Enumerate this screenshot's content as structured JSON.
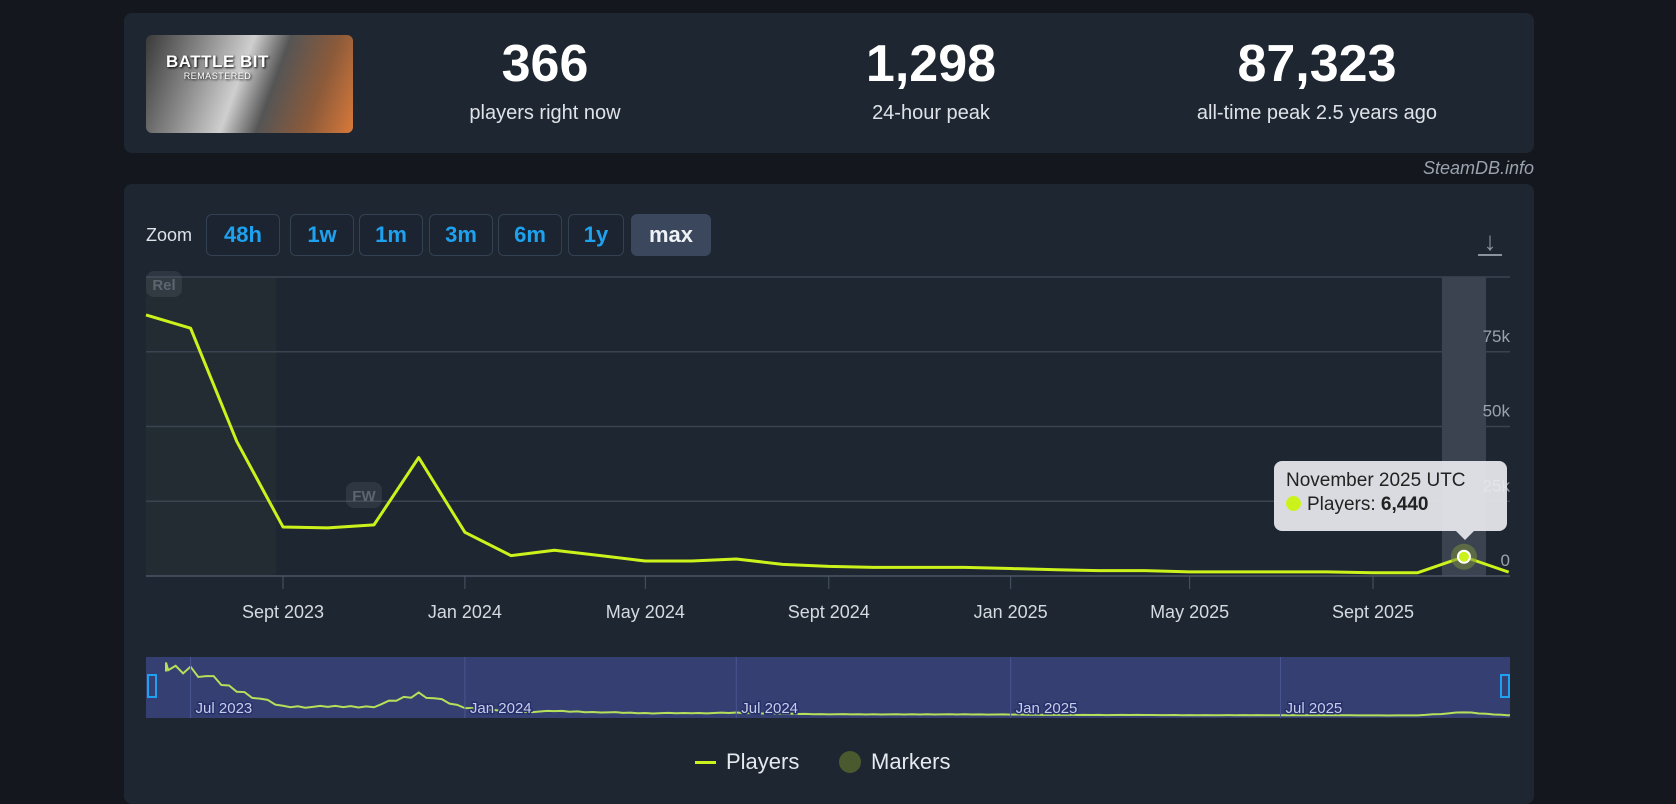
{
  "header": {
    "game_logo_text": "BATTLE BIT",
    "game_logo_subtext": "REMASTERED",
    "stats": [
      {
        "value": "366",
        "label": "players right now"
      },
      {
        "value": "1,298",
        "label": "24-hour peak"
      },
      {
        "value": "87,323",
        "label": "all-time peak 2.5 years ago"
      }
    ],
    "credit": "SteamDB.info"
  },
  "zoom": {
    "label": "Zoom",
    "buttons": [
      "48h",
      "1w",
      "1m",
      "3m",
      "6m",
      "1y",
      "max"
    ],
    "active": "max"
  },
  "tooltip": {
    "title": "November 2025 UTC",
    "series": "Players:",
    "value": "6,440"
  },
  "legend": {
    "players": "Players",
    "markers": "Markers"
  },
  "colors": {
    "line": "#ccf21c",
    "accent": "#1ea2ef",
    "navigator_bg": "#353f72",
    "marker": "#4a5a2e"
  },
  "chart_data": {
    "type": "line",
    "title": "",
    "xlabel": "",
    "ylabel": "",
    "ylim": [
      0,
      100000
    ],
    "yticks": [
      "0",
      "25k",
      "50k",
      "75k"
    ],
    "xticks": [
      "Sept 2023",
      "Jan 2024",
      "May 2024",
      "Sept 2024",
      "Jan 2025",
      "May 2025",
      "Sept 2025"
    ],
    "grid": true,
    "legend_position": "bottom",
    "series": [
      {
        "name": "Players",
        "x": [
          "2023-06",
          "2023-07",
          "2023-08",
          "2023-09",
          "2023-10",
          "2023-11",
          "2023-12",
          "2024-01",
          "2024-02",
          "2024-03",
          "2024-04",
          "2024-05",
          "2024-06",
          "2024-07",
          "2024-08",
          "2024-09",
          "2024-10",
          "2024-11",
          "2024-12",
          "2025-01",
          "2025-02",
          "2025-03",
          "2025-04",
          "2025-05",
          "2025-06",
          "2025-07",
          "2025-08",
          "2025-09",
          "2025-10",
          "2025-11",
          "2025-12"
        ],
        "values": [
          87323,
          82900,
          45000,
          16400,
          16100,
          17100,
          39600,
          14600,
          6800,
          8600,
          6800,
          5000,
          5000,
          5700,
          3900,
          3200,
          2900,
          2900,
          2900,
          2500,
          2100,
          1800,
          1800,
          1400,
          1400,
          1400,
          1400,
          1100,
          1100,
          6440,
          1298
        ]
      }
    ],
    "markers": [
      {
        "label": "Rel",
        "x": "2023-06"
      },
      {
        "label": "FW",
        "x": "2023-11"
      }
    ],
    "navigator": {
      "xticks": [
        "Jul 2023",
        "Jan 2024",
        "Jul 2024",
        "Jan 2025",
        "Jul 2025"
      ]
    },
    "highlighted": "2025-11"
  }
}
